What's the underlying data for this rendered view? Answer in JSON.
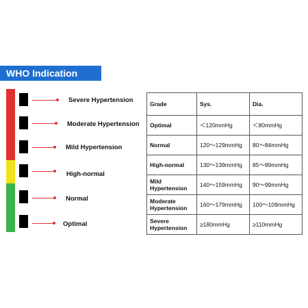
{
  "header": {
    "title": "WHO Indication"
  },
  "colors": {
    "header_bg": "#1e6fd0",
    "red": "#e03030",
    "yellow": "#f2e21a",
    "green": "#3bb24a"
  },
  "levels": [
    {
      "label": "Severe Hypertension"
    },
    {
      "label": "Moderate Hypertension"
    },
    {
      "label": "Mild Hypertension"
    },
    {
      "label": "High-normal"
    },
    {
      "label": "Normal"
    },
    {
      "label": "Optimal"
    }
  ],
  "table": {
    "headers": [
      "Grade",
      "Sys.",
      "Dia."
    ],
    "rows": [
      {
        "grade": "Optimal",
        "sys": "＜120mmHg",
        "dia": "＜80mmHg"
      },
      {
        "grade": "Normal",
        "sys": "120～129mmHg",
        "dia": "80～84mmHg"
      },
      {
        "grade": "High-normal",
        "sys": "130～139mmHg",
        "dia": "85～89mmHg"
      },
      {
        "grade": "Mild Hypertension",
        "sys": "140～159mmHg",
        "dia": "90～99mmHg"
      },
      {
        "grade": "Moderate Hypertension",
        "sys": "160～179mmHg",
        "dia": "100～109mmHg"
      },
      {
        "grade": "Severe Hypertension",
        "sys": "≥180mmHg",
        "dia": "≥110mmHg"
      }
    ]
  }
}
